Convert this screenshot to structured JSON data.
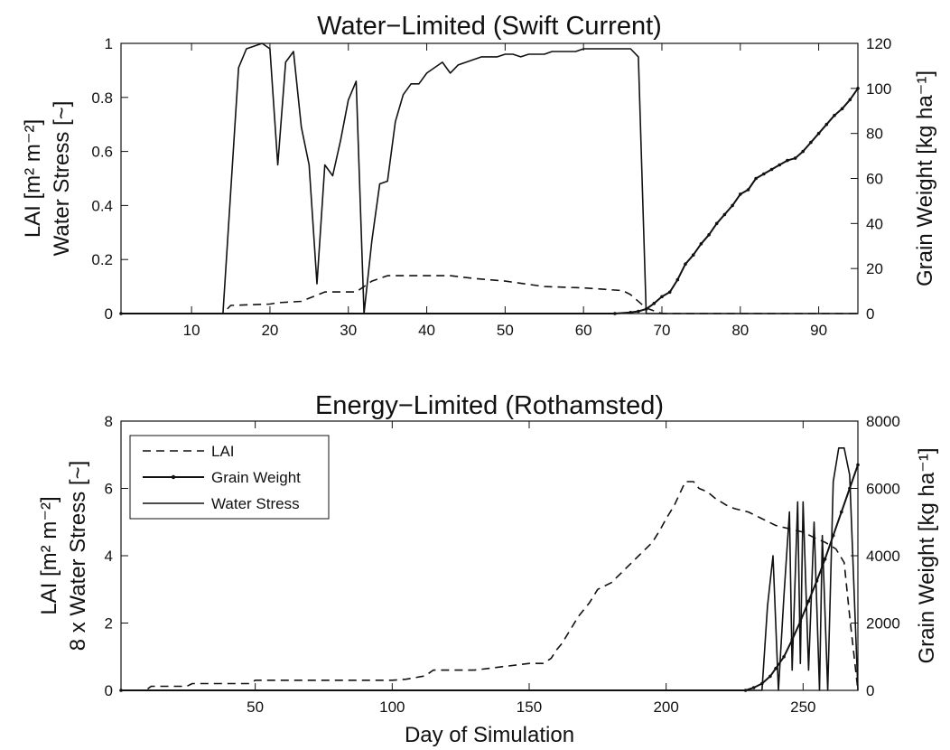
{
  "chart_data": [
    {
      "type": "line",
      "title": "Water−Limited (Swift Current)",
      "xlabel": "",
      "ylabel_lines": [
        "LAI [m² m⁻²]",
        "Water Stress [~]"
      ],
      "ylabel2": "Grain Weight [kg ha⁻¹]",
      "xlim": [
        1,
        95
      ],
      "ylim": [
        0,
        1
      ],
      "ylim2": [
        0,
        120
      ],
      "xticks": [
        10,
        20,
        30,
        40,
        50,
        60,
        70,
        80,
        90
      ],
      "yticks": [
        0,
        0.2,
        0.4,
        0.6,
        0.8,
        1
      ],
      "ytick_labels": [
        "0",
        "0.2",
        "0.4",
        "0.6",
        "0.8",
        "1"
      ],
      "yticks2": [
        0,
        20,
        40,
        60,
        80,
        100,
        120
      ],
      "grid": false,
      "series": [
        {
          "name": "LAI",
          "axis": "left",
          "style": "dashed",
          "x": [
            1,
            14,
            15,
            20,
            21,
            24,
            27,
            31,
            33,
            35,
            37,
            43,
            46,
            50,
            55,
            60,
            65,
            66,
            68,
            70,
            95
          ],
          "y": [
            0,
            0,
            0.03,
            0.035,
            0.04,
            0.045,
            0.08,
            0.08,
            0.12,
            0.14,
            0.14,
            0.14,
            0.13,
            0.12,
            0.1,
            0.095,
            0.085,
            0.07,
            0.02,
            0,
            0
          ]
        },
        {
          "name": "Grain Weight",
          "axis": "right",
          "style": "solid-dots",
          "x": [
            1,
            64,
            66,
            67,
            68,
            69,
            70,
            71,
            72,
            73,
            74,
            75,
            76,
            77,
            78,
            79,
            80,
            81,
            82,
            83,
            84,
            85,
            86,
            87,
            88,
            89,
            90,
            91,
            92,
            93,
            94,
            95
          ],
          "y": [
            0,
            0,
            0.5,
            1,
            2,
            4.5,
            7.5,
            9.5,
            15,
            22,
            26,
            31,
            35,
            40,
            44,
            48,
            53,
            55,
            60,
            62,
            64,
            66,
            68,
            69,
            72,
            76,
            80,
            84,
            88,
            91,
            95,
            100
          ]
        },
        {
          "name": "Water Stress",
          "axis": "left",
          "style": "solid",
          "x": [
            1,
            14,
            16,
            17,
            19,
            20,
            21,
            22,
            23,
            24,
            25,
            26,
            27,
            28,
            29,
            30,
            31,
            32,
            33,
            34,
            35,
            36,
            37,
            38,
            39,
            40,
            41,
            42,
            43,
            44,
            45,
            46,
            47,
            48,
            49,
            50,
            51,
            52,
            53,
            54,
            55,
            56,
            57,
            58,
            59,
            60,
            61,
            62,
            63,
            64,
            65,
            66,
            67,
            68,
            95
          ],
          "y": [
            0,
            0,
            0.91,
            0.98,
            1.0,
            0.98,
            0.55,
            0.93,
            0.97,
            0.69,
            0.55,
            0.11,
            0.55,
            0.51,
            0.64,
            0.79,
            0.86,
            0,
            0.27,
            0.48,
            0.49,
            0.71,
            0.81,
            0.85,
            0.85,
            0.89,
            0.91,
            0.93,
            0.89,
            0.92,
            0.93,
            0.94,
            0.95,
            0.95,
            0.95,
            0.96,
            0.96,
            0.95,
            0.96,
            0.96,
            0.96,
            0.97,
            0.97,
            0.97,
            0.97,
            0.98,
            0.98,
            0.98,
            0.98,
            0.98,
            0.98,
            0.98,
            0.95,
            0,
            0
          ]
        }
      ]
    },
    {
      "type": "line",
      "title": "Energy−Limited (Rothamsted)",
      "xlabel": "Day of Simulation",
      "ylabel_lines": [
        "LAI [m² m⁻²]",
        "8 x Water Stress [~]"
      ],
      "ylabel2": "Grain Weight [kg ha⁻¹]",
      "xlim": [
        1,
        270
      ],
      "ylim": [
        0,
        8
      ],
      "ylim2": [
        0,
        8000
      ],
      "xticks": [
        50,
        100,
        150,
        200,
        250
      ],
      "yticks": [
        0,
        2,
        4,
        6,
        8
      ],
      "yticks2": [
        0,
        2000,
        4000,
        6000,
        8000
      ],
      "grid": false,
      "legend_position": "top-left",
      "legend": [
        "LAI",
        "Grain Weight",
        "Water Stress"
      ],
      "series": [
        {
          "name": "LAI",
          "axis": "left",
          "style": "dashed",
          "x": [
            1,
            10,
            12,
            25,
            27,
            48,
            50,
            100,
            105,
            112,
            115,
            130,
            150,
            155,
            158,
            160,
            162,
            165,
            168,
            172,
            175,
            180,
            185,
            190,
            195,
            198,
            200,
            203,
            207,
            210,
            212,
            215,
            218,
            222,
            225,
            230,
            235,
            240,
            245,
            250,
            255,
            258,
            262,
            265,
            267,
            270
          ],
          "y": [
            0,
            0,
            0.12,
            0.12,
            0.2,
            0.2,
            0.3,
            0.3,
            0.33,
            0.43,
            0.6,
            0.6,
            0.8,
            0.8,
            0.95,
            1.2,
            1.4,
            1.8,
            2.2,
            2.6,
            3.0,
            3.2,
            3.6,
            4.0,
            4.4,
            4.8,
            5.1,
            5.5,
            6.2,
            6.2,
            6.0,
            5.9,
            5.7,
            5.5,
            5.4,
            5.3,
            5.1,
            4.9,
            4.8,
            4.7,
            4.5,
            4.4,
            4.2,
            3.8,
            2.2,
            0
          ]
        },
        {
          "name": "Grain Weight",
          "axis": "right",
          "style": "solid-dots",
          "x": [
            1,
            229,
            232,
            235,
            238,
            240,
            243,
            246,
            249,
            252,
            255,
            258,
            261,
            264,
            267,
            270
          ],
          "y": [
            0,
            0,
            80,
            200,
            420,
            650,
            1000,
            1500,
            2050,
            2650,
            3250,
            3900,
            4600,
            5300,
            6000,
            6700
          ]
        },
        {
          "name": "Water Stress",
          "axis": "left",
          "style": "solid",
          "x": [
            1,
            235,
            237,
            239,
            241,
            243,
            245,
            246,
            248,
            249,
            250,
            252,
            254,
            256,
            257,
            259,
            261,
            263,
            265,
            267,
            270
          ],
          "y": [
            0,
            0,
            2.5,
            4.0,
            0,
            2.8,
            5.3,
            0.6,
            5.6,
            0.8,
            5.6,
            0.6,
            5.0,
            0,
            4.6,
            0,
            6.2,
            7.2,
            7.2,
            6.4,
            0
          ]
        }
      ]
    }
  ]
}
